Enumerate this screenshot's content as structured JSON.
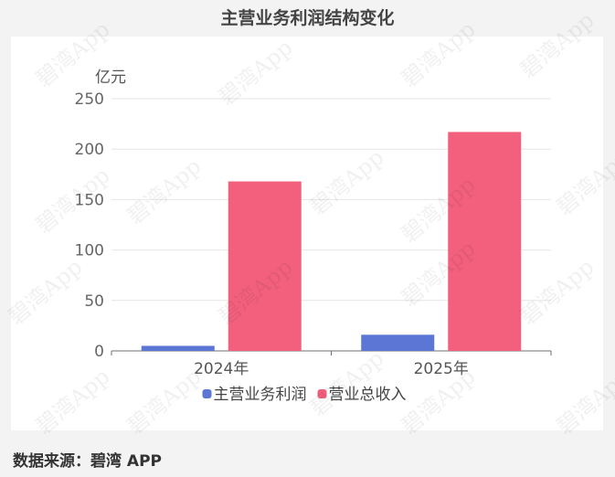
{
  "page": {
    "title": "主营业务利润结构变化",
    "source": "数据来源：碧湾 APP",
    "watermark": "碧湾App"
  },
  "chart_data": {
    "type": "bar",
    "title": "主营业务利润结构变化",
    "ylabel": "亿元",
    "xlabel": "",
    "categories": [
      "2024年",
      "2025年"
    ],
    "series": [
      {
        "name": "主营业务利润",
        "color": "#5b76d4",
        "values": [
          5,
          16
        ]
      },
      {
        "name": "营业总收入",
        "color": "#f2607d",
        "values": [
          168,
          217
        ]
      }
    ],
    "ylim": [
      0,
      250
    ],
    "yticks": [
      0,
      50,
      100,
      150,
      200,
      250
    ],
    "grid": true,
    "legend_position": "bottom"
  }
}
